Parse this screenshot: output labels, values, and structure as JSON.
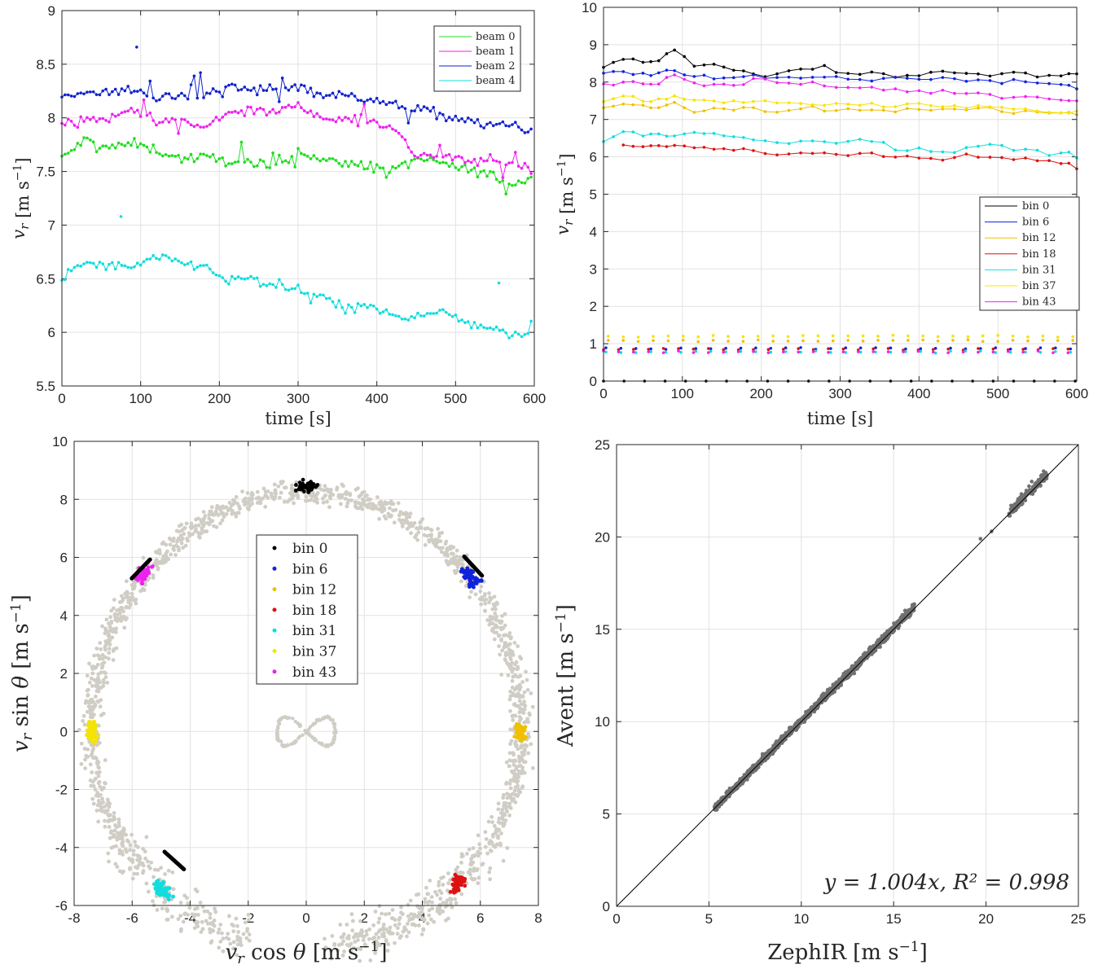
{
  "chart_data": [
    {
      "type": "line",
      "ylabel": "v_r [m s^-1]",
      "xlabel": "time [s]",
      "xlim": [
        0,
        600
      ],
      "ylim": [
        5.5,
        9
      ],
      "xticks": [
        "0",
        "100",
        "200",
        "300",
        "400",
        "500",
        "600"
      ],
      "yticks": [
        "5.5",
        "6",
        "6.5",
        "7",
        "7.5",
        "8",
        "8.5",
        "9"
      ],
      "grid": true,
      "legend_position": "top-right",
      "series": [
        {
          "name": "beam 0",
          "color": "#22dd22",
          "x": [
            0,
            30,
            60,
            90,
            120,
            150,
            180,
            210,
            240,
            270,
            300,
            330,
            360,
            390,
            420,
            450,
            480,
            510,
            540,
            570,
            600
          ],
          "values": [
            7.62,
            7.8,
            7.72,
            7.76,
            7.7,
            7.62,
            7.63,
            7.6,
            7.58,
            7.52,
            7.7,
            7.6,
            7.58,
            7.55,
            7.5,
            7.62,
            7.58,
            7.52,
            7.48,
            7.38,
            7.45
          ]
        },
        {
          "name": "beam 1",
          "color": "#ee22ee",
          "x": [
            0,
            30,
            60,
            90,
            120,
            150,
            180,
            210,
            240,
            270,
            300,
            330,
            360,
            390,
            420,
            450,
            480,
            510,
            540,
            570,
            600
          ],
          "values": [
            7.95,
            8.0,
            7.98,
            8.1,
            7.95,
            7.98,
            7.9,
            8.05,
            8.08,
            8.05,
            8.12,
            8.0,
            7.98,
            8.0,
            7.9,
            7.65,
            7.65,
            7.6,
            7.6,
            7.58,
            7.52
          ]
        },
        {
          "name": "beam 2",
          "color": "#1122cc",
          "x": [
            0,
            30,
            60,
            90,
            120,
            150,
            180,
            210,
            240,
            270,
            300,
            330,
            360,
            390,
            420,
            450,
            480,
            510,
            540,
            570,
            600
          ],
          "values": [
            8.2,
            8.25,
            8.22,
            8.28,
            8.18,
            8.2,
            8.22,
            8.3,
            8.25,
            8.28,
            8.3,
            8.22,
            8.2,
            8.18,
            8.12,
            8.08,
            8.03,
            7.98,
            7.92,
            7.95,
            7.85
          ]
        },
        {
          "name": "beam 4",
          "color": "#11dddd",
          "x": [
            0,
            30,
            60,
            90,
            120,
            150,
            180,
            210,
            240,
            270,
            300,
            330,
            360,
            390,
            420,
            450,
            480,
            510,
            540,
            570,
            600
          ],
          "values": [
            6.5,
            6.65,
            6.62,
            6.6,
            6.7,
            6.65,
            6.62,
            6.48,
            6.5,
            6.42,
            6.38,
            6.35,
            6.2,
            6.25,
            6.15,
            6.15,
            6.2,
            6.1,
            6.05,
            5.98,
            5.98
          ]
        }
      ]
    },
    {
      "type": "line",
      "ylabel": "v_r [m s^-1]",
      "xlabel": "time [s]",
      "xlim": [
        0,
        600
      ],
      "ylim": [
        0,
        10
      ],
      "xticks": [
        "0",
        "100",
        "200",
        "300",
        "400",
        "500",
        "600"
      ],
      "yticks": [
        "0",
        "1",
        "2",
        "3",
        "4",
        "5",
        "6",
        "7",
        "8",
        "9",
        "10"
      ],
      "grid": true,
      "legend_position": "right",
      "series": [
        {
          "name": "bin 0",
          "color": "#000000",
          "x": [
            0,
            25,
            50,
            70,
            90,
            115,
            140,
            165,
            190,
            220,
            250,
            280,
            310,
            340,
            370,
            400,
            430,
            460,
            490,
            520,
            550,
            580,
            600
          ],
          "values": [
            8.4,
            8.65,
            8.55,
            8.6,
            8.9,
            8.45,
            8.5,
            8.3,
            8.2,
            8.25,
            8.3,
            8.4,
            8.2,
            8.25,
            8.15,
            8.2,
            8.3,
            8.25,
            8.2,
            8.3,
            8.15,
            8.2,
            8.2
          ]
        },
        {
          "name": "bin 6",
          "color": "#1122dd",
          "x": [
            0,
            25,
            50,
            70,
            90,
            115,
            140,
            165,
            190,
            220,
            250,
            280,
            310,
            340,
            370,
            400,
            430,
            460,
            490,
            520,
            550,
            580,
            600
          ],
          "values": [
            8.2,
            8.3,
            8.2,
            8.25,
            8.3,
            8.15,
            8.12,
            8.1,
            8.2,
            8.1,
            8.08,
            8.15,
            8.1,
            8.05,
            8.1,
            8.08,
            8.12,
            8.05,
            8.02,
            8.05,
            8.0,
            7.9,
            7.85
          ]
        },
        {
          "name": "bin 12",
          "color": "#f0c000",
          "x": [
            0,
            25,
            50,
            70,
            90,
            115,
            140,
            165,
            190,
            220,
            250,
            280,
            310,
            340,
            370,
            400,
            430,
            460,
            490,
            520,
            550,
            580,
            600
          ],
          "values": [
            7.3,
            7.4,
            7.35,
            7.3,
            7.45,
            7.25,
            7.3,
            7.2,
            7.3,
            7.2,
            7.3,
            7.25,
            7.25,
            7.3,
            7.2,
            7.25,
            7.3,
            7.25,
            7.3,
            7.2,
            7.2,
            7.15,
            7.15
          ]
        },
        {
          "name": "bin 18",
          "color": "#dd1111",
          "x": [
            25,
            50,
            70,
            90,
            115,
            140,
            165,
            190,
            220,
            250,
            280,
            310,
            340,
            370,
            400,
            430,
            460,
            490,
            520,
            550,
            580,
            600
          ],
          "values": [
            6.3,
            6.28,
            6.3,
            6.3,
            6.25,
            6.2,
            6.15,
            6.2,
            6.05,
            6.1,
            6.05,
            6.05,
            6.08,
            6.0,
            6.0,
            5.95,
            6.05,
            6.0,
            5.95,
            5.9,
            5.85,
            5.7
          ]
        },
        {
          "name": "bin 31",
          "color": "#11dddd",
          "x": [
            0,
            25,
            50,
            70,
            90,
            115,
            140,
            165,
            190,
            220,
            250,
            280,
            310,
            340,
            370,
            400,
            430,
            460,
            490,
            520,
            550,
            580,
            600
          ],
          "values": [
            6.45,
            6.65,
            6.6,
            6.62,
            6.55,
            6.65,
            6.6,
            6.58,
            6.45,
            6.4,
            6.45,
            6.42,
            6.4,
            6.45,
            6.2,
            6.25,
            6.15,
            6.25,
            6.3,
            6.2,
            6.15,
            6.1,
            6.0
          ]
        },
        {
          "name": "bin 37",
          "color": "#f5e400",
          "x": [
            0,
            25,
            50,
            70,
            90,
            115,
            140,
            165,
            190,
            220,
            250,
            280,
            310,
            340,
            370,
            400,
            430,
            460,
            490,
            520,
            550,
            580,
            600
          ],
          "values": [
            7.5,
            7.6,
            7.55,
            7.5,
            7.6,
            7.5,
            7.5,
            7.45,
            7.5,
            7.4,
            7.45,
            7.4,
            7.45,
            7.4,
            7.35,
            7.4,
            7.35,
            7.3,
            7.35,
            7.3,
            7.25,
            7.2,
            7.2
          ]
        },
        {
          "name": "bin 43",
          "color": "#ee22ee",
          "x": [
            0,
            25,
            50,
            70,
            90,
            115,
            140,
            165,
            190,
            220,
            250,
            280,
            310,
            340,
            370,
            400,
            430,
            460,
            490,
            520,
            550,
            580,
            600
          ],
          "values": [
            7.95,
            8.0,
            8.0,
            7.95,
            8.2,
            7.95,
            7.95,
            7.9,
            8.05,
            8.0,
            7.95,
            7.9,
            7.85,
            7.85,
            7.8,
            7.75,
            7.75,
            7.7,
            7.65,
            7.6,
            7.6,
            7.55,
            7.5
          ]
        }
      ],
      "low_points": [
        {
          "color": "#000000",
          "y": 0.0
        },
        {
          "color": "#1122dd",
          "y": 0.88
        },
        {
          "color": "#f0c000",
          "y": 1.08
        },
        {
          "color": "#dd1111",
          "y": 0.85
        },
        {
          "color": "#11dddd",
          "y": 0.78
        },
        {
          "color": "#f5e400",
          "y": 1.2
        },
        {
          "color": "#ee22ee",
          "y": 0.78
        }
      ]
    },
    {
      "type": "scatter",
      "ylabel": "v_r sin θ [m s^-1]",
      "xlabel": "v_r cos θ [m s^-1]",
      "xlim": [
        -8,
        8
      ],
      "ylim": [
        -6,
        10
      ],
      "xticks": [
        "-8",
        "-6",
        "-4",
        "-2",
        "0",
        "2",
        "4",
        "6",
        "8"
      ],
      "yticks": [
        "-6",
        "-4",
        "-2",
        "0",
        "2",
        "4",
        "6",
        "8",
        "10"
      ],
      "grid": true,
      "legend_position": "center",
      "background_color": "#d0cdc5",
      "ring_radius": 7.4,
      "gap_angles_deg": [
        -100,
        -80
      ],
      "series": [
        {
          "name": "bin 0",
          "color": "#000000",
          "angle_deg": 90
        },
        {
          "name": "bin 6",
          "color": "#1122dd",
          "angle_deg": 43
        },
        {
          "name": "bin 12",
          "color": "#f0c000",
          "angle_deg": 0
        },
        {
          "name": "bin 18",
          "color": "#dd1111",
          "angle_deg": -45
        },
        {
          "name": "bin 31",
          "color": "#11dddd",
          "angle_deg": -132
        },
        {
          "name": "bin 37",
          "color": "#f5e400",
          "angle_deg": 180
        },
        {
          "name": "bin 43",
          "color": "#ee22ee",
          "angle_deg": 136
        }
      ]
    },
    {
      "type": "scatter",
      "ylabel": "Avent [m s^-1]",
      "xlabel": "ZephIR [m s^-1]",
      "xlim": [
        0,
        25
      ],
      "ylim": [
        0,
        25
      ],
      "xticks": [
        "0",
        "5",
        "10",
        "15",
        "20",
        "25"
      ],
      "yticks": [
        "0",
        "5",
        "10",
        "15",
        "20",
        "25"
      ],
      "grid": true,
      "point_color": "#707070",
      "fit_slope": 1.004,
      "annotation": "y = 1.004x, R² = 0.998",
      "data_range": [
        5.3,
        23.3
      ]
    }
  ]
}
